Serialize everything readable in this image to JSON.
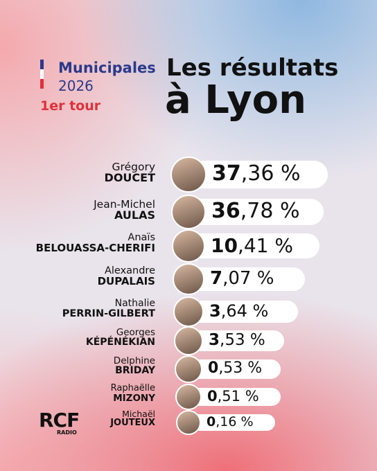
{
  "header": {
    "brand": "Municipales",
    "year": "2026",
    "round": "1er tour",
    "title_line1": "Les résultats",
    "title_line2": "à Lyon"
  },
  "candidates": [
    {
      "first_name": "Grégory",
      "last_name": "DOUCET",
      "result": "37,36 %"
    },
    {
      "first_name": "Jean-Michel",
      "last_name": "AULAS",
      "result": "36,78 %"
    },
    {
      "first_name": "Anaïs",
      "last_name": "BELOUASSA-CHERIFI",
      "result": "10,41 %"
    },
    {
      "first_name": "Alexandre",
      "last_name": "DUPALAIS",
      "result": "7,07 %"
    },
    {
      "first_name": "Nathalie",
      "last_name": "PERRIN-GILBERT",
      "result": "3,64 %"
    },
    {
      "first_name": "Georges",
      "last_name": "KÉPÉNÉKIAN",
      "result": "3,53 %"
    },
    {
      "first_name": "Delphine",
      "last_name": "BRIDAY",
      "result": "0,53 %"
    },
    {
      "first_name": "Raphaëlle",
      "last_name": "MIZONY",
      "result": "0,51 %"
    },
    {
      "first_name": "Michaël",
      "last_name": "JOUTEUX",
      "result": "0,16 %"
    }
  ],
  "logo": {
    "name": "RCF",
    "sub": "RADIO"
  }
}
